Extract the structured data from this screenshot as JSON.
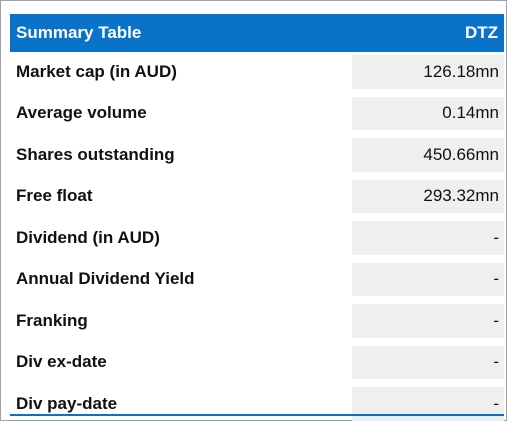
{
  "header": {
    "title": "Summary Table",
    "ticker": "DTZ"
  },
  "colors": {
    "header_bg": "#0b72c9",
    "value_bg": "#efefef"
  },
  "rows": [
    {
      "label": "Market cap (in AUD)",
      "value": "126.18mn"
    },
    {
      "label": "Average volume",
      "value": "0.14mn"
    },
    {
      "label": "Shares outstanding",
      "value": "450.66mn"
    },
    {
      "label": "Free float",
      "value": "293.32mn"
    },
    {
      "label": "Dividend (in AUD)",
      "value": "-"
    },
    {
      "label": "Annual Dividend Yield",
      "value": "-"
    },
    {
      "label": "Franking",
      "value": "-"
    },
    {
      "label": "Div ex-date",
      "value": "-"
    },
    {
      "label": "Div pay-date",
      "value": "-"
    }
  ]
}
